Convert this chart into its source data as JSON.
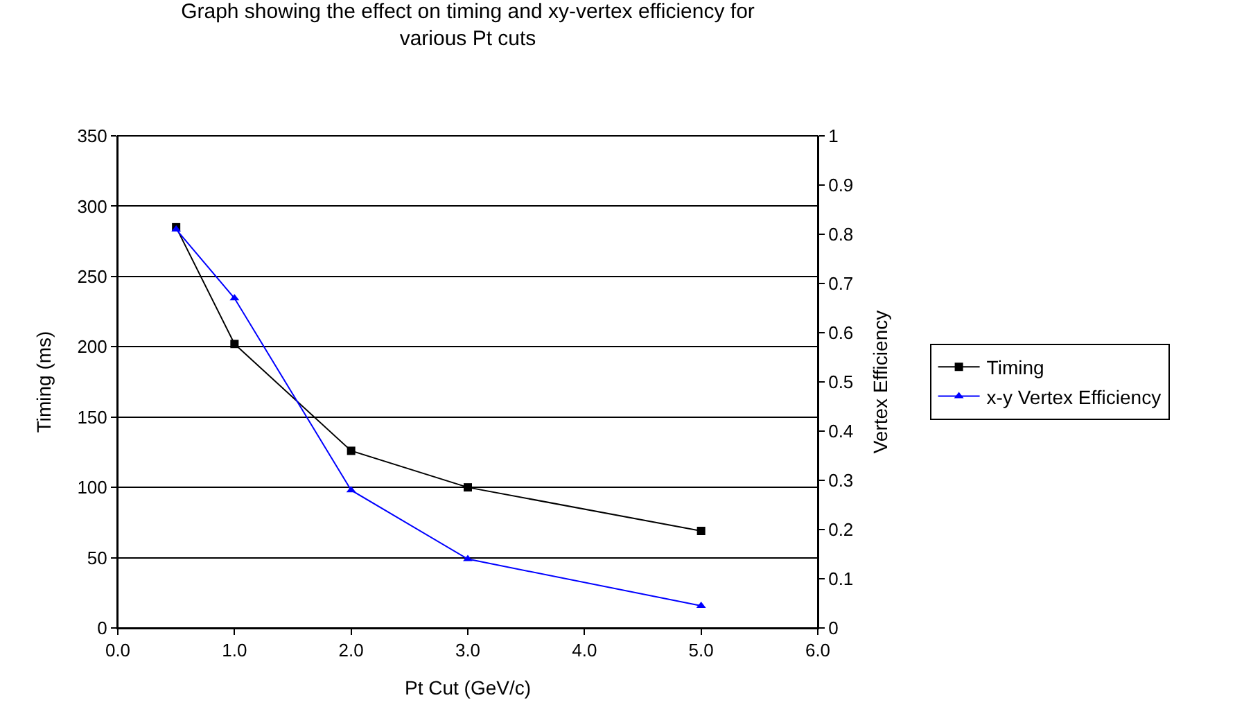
{
  "chart_data": {
    "type": "line",
    "title": "Graph showing the effect on timing and xy-vertex efficiency for various Pt cuts",
    "xlabel": "Pt Cut (GeV/c)",
    "ylabel": "Timing (ms)",
    "y2label": "Vertex Efficiency",
    "x": [
      0.5,
      1.0,
      2.0,
      3.0,
      5.0
    ],
    "series": [
      {
        "name": "Timing",
        "color": "#000000",
        "marker": "square",
        "values": [
          285,
          202,
          126,
          100,
          69
        ]
      },
      {
        "name": "x-y Vertex Efficiency",
        "color": "#0000ff",
        "marker": "triangle",
        "axis": "y2",
        "values": [
          0.81,
          0.67,
          0.28,
          0.14,
          0.045
        ]
      }
    ],
    "xlim": [
      0,
      6
    ],
    "xticks": [
      {
        "value": 0,
        "label": "0.0"
      },
      {
        "value": 1,
        "label": "1.0"
      },
      {
        "value": 2,
        "label": "2.0"
      },
      {
        "value": 3,
        "label": "3.0"
      },
      {
        "value": 4,
        "label": "4.0"
      },
      {
        "value": 5,
        "label": "5.0"
      },
      {
        "value": 6,
        "label": "6.0"
      }
    ],
    "ylim": [
      0,
      350
    ],
    "yticks": [
      0,
      50,
      100,
      150,
      200,
      250,
      300,
      350
    ],
    "y2lim": [
      0,
      1
    ],
    "y2ticks": [
      0,
      0.1,
      0.2,
      0.3,
      0.4,
      0.5,
      0.6,
      0.7,
      0.8,
      0.9,
      1
    ],
    "grid": "y",
    "legend": "right",
    "line_style": "solid"
  }
}
